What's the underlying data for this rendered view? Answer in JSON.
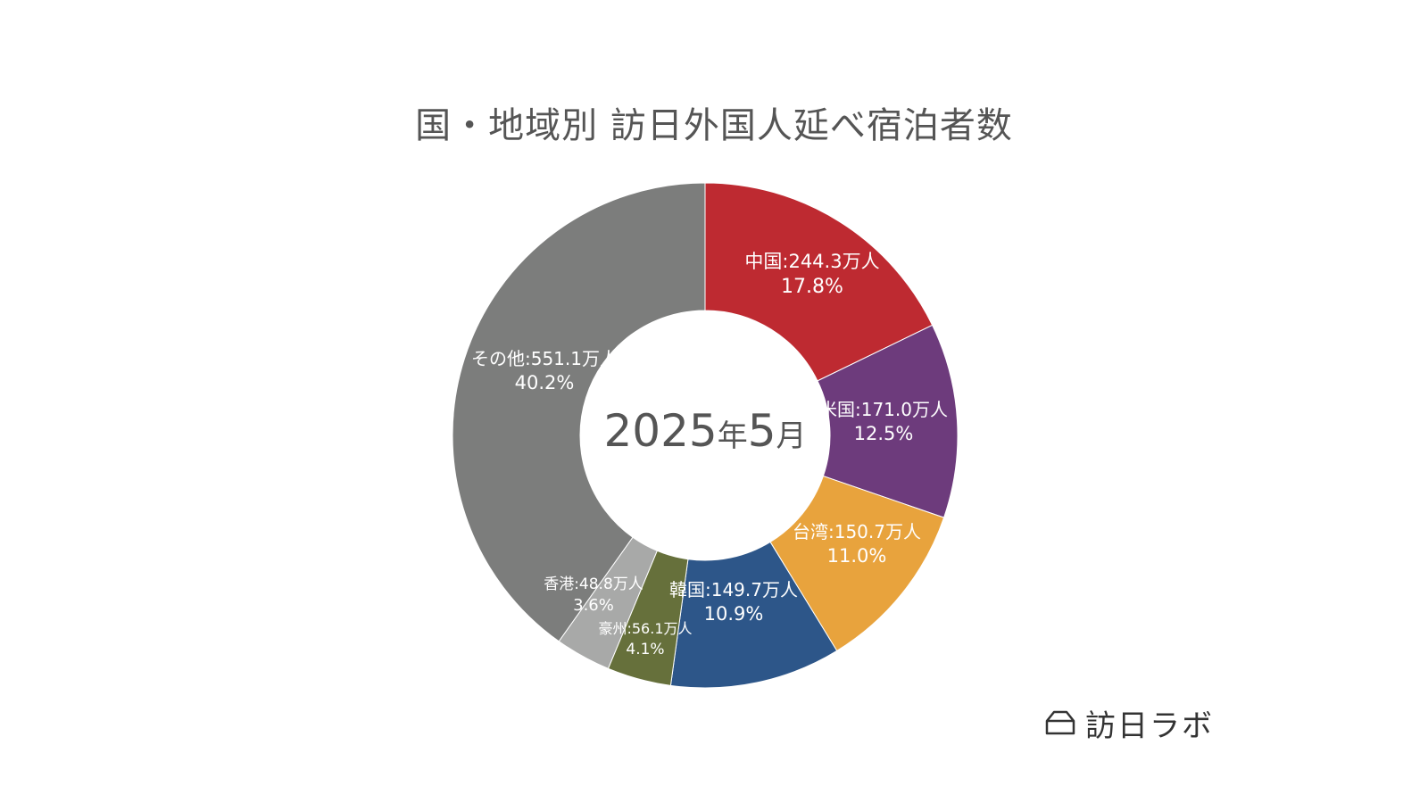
{
  "chart_data": {
    "type": "pie",
    "title": "国・地域別 訪日外国人延べ宿泊者数",
    "center_label": "2025年5月",
    "unit": "万人",
    "slices": [
      {
        "name": "中国",
        "value": 244.3,
        "percent": "17.8%",
        "label": "中国:244.3万人",
        "color": "#be2a31"
      },
      {
        "name": "米国",
        "value": 171.0,
        "percent": "12.5%",
        "label": "米国:171.0万人",
        "color": "#6d3b7c"
      },
      {
        "name": "台湾",
        "value": 150.7,
        "percent": "11.0%",
        "label": "台湾:150.7万人",
        "color": "#e8a33d"
      },
      {
        "name": "韓国",
        "value": 149.7,
        "percent": "10.9%",
        "label": "韓国:149.7万人",
        "color": "#2d5689"
      },
      {
        "name": "豪州",
        "value": 56.1,
        "percent": "4.1%",
        "label": "豪州:56.1万人",
        "color": "#66703b"
      },
      {
        "name": "香港",
        "value": 48.8,
        "percent": "3.6%",
        "label": "香港:48.8万人",
        "color": "#a8a9a8"
      },
      {
        "name": "その他",
        "value": 551.1,
        "percent": "40.2%",
        "label": "その他:551.1万人",
        "color": "#7c7d7c"
      }
    ]
  },
  "brand": {
    "name": "訪日ラボ",
    "icon": "house-outline-icon"
  }
}
